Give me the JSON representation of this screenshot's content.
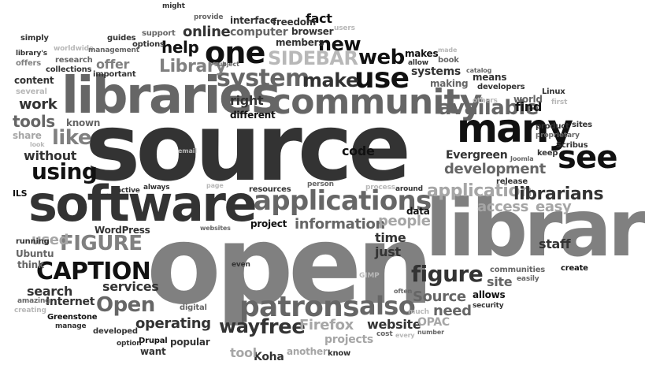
{
  "word_cloud": {
    "colors": {
      "background": "#ffffff",
      "black": "#111111",
      "dark_gray": "#333333",
      "medium_gray": "#666666",
      "gray": "#808080",
      "light_gray": "#a6a6a6",
      "pale_gray": "#b8b8b8"
    },
    "words": {
      "source": "source",
      "open_large": "open",
      "library": "library",
      "libraries": "libraries",
      "software": "software",
      "community": "community",
      "many": "many",
      "see": "see",
      "applications": "applications",
      "patrons": "patrons",
      "one": "one",
      "use": "use",
      "system": "system",
      "web": "web",
      "available": "available",
      "make": "make",
      "using": "using",
      "also": "also",
      "caption": "CAPTION",
      "figure_caps": "FIGURE",
      "figure": "figure",
      "open_cap": "Open",
      "free": "free",
      "way": "way",
      "application": "application",
      "librarians": "librarians",
      "sidebar": "SIDEBAR",
      "new": "new",
      "library_cap": "Library",
      "help": "help",
      "online": "online",
      "like": "like",
      "information": "information",
      "development": "development",
      "operating": "operating",
      "source_cap": "Source",
      "people": "people",
      "access": "access",
      "easy": "easy",
      "need": "need",
      "website": "website",
      "firefox": "Firefox",
      "time": "time",
      "just": "just",
      "used": "used",
      "tools": "tools",
      "work": "work",
      "without": "without",
      "right": "right",
      "find": "find",
      "code": "code",
      "site": "site",
      "staff": "staff",
      "services": "services",
      "search": "search",
      "internet": "Internet",
      "koha": "Koha",
      "evergreen": "Evergreen",
      "opac": "OPAC",
      "offer": "offer",
      "content": "content",
      "share": "share",
      "allows": "allows",
      "systems": "systems",
      "makes": "makes",
      "known": "known",
      "fact": "fact",
      "members": "members",
      "computer": "computer",
      "interface": "interface",
      "freedom": "freedom",
      "browser": "browser",
      "projects": "projects",
      "project": "project",
      "tool": "tool",
      "popular": "popular",
      "drupal": "Drupal",
      "want": "want",
      "different": "different",
      "making": "making",
      "world": "world",
      "means": "means",
      "developers": "developers",
      "guides": "guides",
      "research": "research",
      "collections": "collections",
      "important": "important",
      "wordpress": "WordPress",
      "digital": "digital",
      "resources": "resources",
      "data": "data",
      "another": "another",
      "know": "know",
      "greenstone": "Greenstone",
      "ubuntu": "Ubuntu",
      "running": "running",
      "think": "think",
      "amazing": "amazing",
      "creating": "creating",
      "manage": "manage",
      "developed": "developed",
      "option": "option",
      "several": "several",
      "offers": "offers",
      "library_s": "library's",
      "simply": "simply",
      "worldwide": "worldwide",
      "management": "management",
      "might": "might",
      "provide": "provide",
      "support": "support",
      "options": "options",
      "users": "users",
      "subject": "subject",
      "made": "made",
      "book": "book",
      "allow": "allow",
      "catalog": "catalog",
      "linux": "Linux",
      "first": "first",
      "others": "others",
      "product": "product",
      "sites": "sites",
      "proprietary": "proprietary",
      "keep": "keep",
      "scribus": "Scribus",
      "joomla": "Joomla",
      "release": "release",
      "communities": "communities",
      "easily": "easily",
      "create": "create",
      "security": "security",
      "often": "often",
      "much": "much",
      "gimp": "GIMP",
      "cost": "cost",
      "every": "every",
      "number": "number",
      "process": "process",
      "around": "around",
      "person": "person",
      "even": "even",
      "ils": "ILS",
      "active": "active",
      "always": "always",
      "page": "page",
      "email": "email",
      "websites": "websites",
      "look": "look"
    }
  }
}
